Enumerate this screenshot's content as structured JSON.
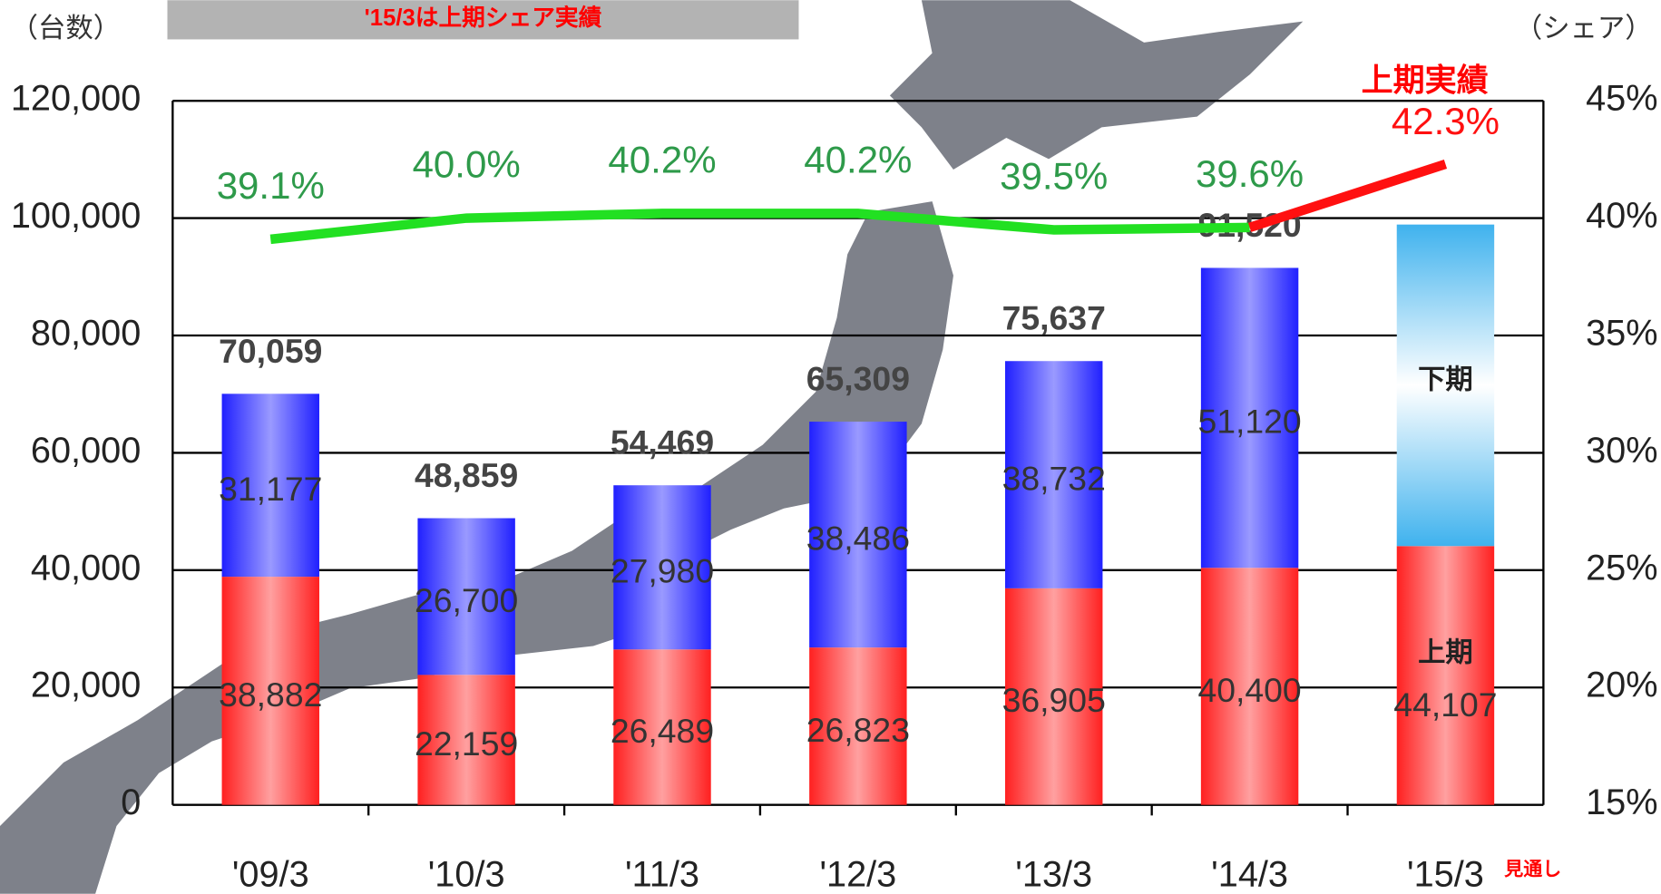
{
  "chart_data": {
    "type": "bar",
    "stacked": true,
    "y_label": "（台数）",
    "y2_label": "（シェア）",
    "banner": "'15/3は上期シェア実績",
    "annotation": "上期実績",
    "forecast_note": "見通し",
    "categories": [
      "'09/3",
      "'10/3",
      "'11/3",
      "'12/3",
      "'13/3",
      "'14/3",
      "'15/3"
    ],
    "series": [
      {
        "name": "上期",
        "color": "#ff2020",
        "values": [
          38882,
          22159,
          26489,
          26823,
          36905,
          40400,
          44107
        ],
        "value_labels": [
          "38,882",
          "22,159",
          "26,489",
          "26,823",
          "36,905",
          "40,400",
          "44,107"
        ]
      },
      {
        "name": "下期",
        "color": "#2020ff",
        "values": [
          31177,
          26700,
          27980,
          38486,
          38732,
          51120,
          54800
        ],
        "value_labels": [
          "31,177",
          "26,700",
          "27,980",
          "38,486",
          "38,732",
          "51,120",
          null
        ]
      },
      {
        "name": "シェア",
        "type": "line",
        "axis": "y2",
        "color": "#22e022",
        "values": [
          39.1,
          40.0,
          40.2,
          40.2,
          39.5,
          39.6,
          42.3
        ],
        "value_labels": [
          "39.1%",
          "40.0%",
          "40.2%",
          "40.2%",
          "39.5%",
          "39.6%",
          "42.3%"
        ]
      }
    ],
    "totals": [
      70059,
      48859,
      54469,
      65309,
      75637,
      91520,
      null
    ],
    "total_labels": [
      "70,059",
      "48,859",
      "54,469",
      "65,309",
      "75,637",
      "91,520",
      null
    ],
    "ylim": [
      0,
      120000
    ],
    "yticks": [
      0,
      {
        "value": 20000,
        "label": "20,000"
      },
      {
        "value": 40000,
        "label": "40,000"
      },
      {
        "value": 60000,
        "label": "60,000"
      },
      {
        "value": 80000,
        "label": "80,000"
      },
      {
        "value": 100000,
        "label": "100,000"
      },
      {
        "value": 120000,
        "label": "120,000"
      }
    ],
    "y2lim": [
      15,
      45
    ],
    "y2ticks": [
      {
        "value": 15,
        "label": "15%"
      },
      {
        "value": 20,
        "label": "20%"
      },
      {
        "value": 25,
        "label": "25%"
      },
      {
        "value": 30,
        "label": "30%"
      },
      {
        "value": 35,
        "label": "35%"
      },
      {
        "value": 40,
        "label": "40%"
      },
      {
        "value": 45,
        "label": "45%"
      }
    ],
    "grid": true
  }
}
